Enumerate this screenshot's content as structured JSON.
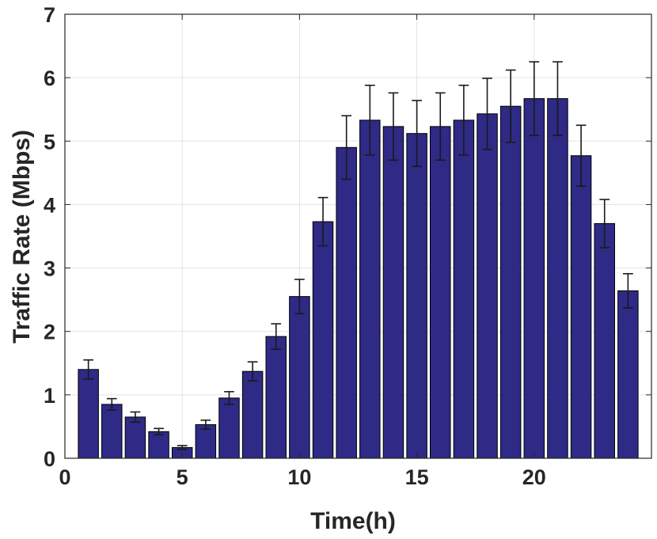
{
  "chart_data": {
    "type": "bar",
    "title": "",
    "xlabel": "Time(h)",
    "ylabel": "Traffic Rate (Mbps)",
    "xlim": [
      0,
      25
    ],
    "ylim": [
      0,
      7
    ],
    "xticks": [
      0,
      5,
      10,
      15,
      20
    ],
    "yticks": [
      0,
      1,
      2,
      3,
      4,
      5,
      6,
      7
    ],
    "grid": true,
    "bar_color": "#2e2a85",
    "error_bar_color": "#1a1a1a",
    "x": [
      1,
      2,
      3,
      4,
      5,
      6,
      7,
      8,
      9,
      10,
      11,
      12,
      13,
      14,
      15,
      16,
      17,
      18,
      19,
      20,
      21,
      22,
      23,
      24
    ],
    "values": [
      1.4,
      0.85,
      0.65,
      0.42,
      0.17,
      0.53,
      0.95,
      1.37,
      1.92,
      2.55,
      3.73,
      4.9,
      5.33,
      5.23,
      5.12,
      5.23,
      5.33,
      5.43,
      5.55,
      5.67,
      5.67,
      4.77,
      3.7,
      2.64
    ],
    "errors": [
      0.15,
      0.09,
      0.08,
      0.05,
      0.03,
      0.07,
      0.1,
      0.15,
      0.2,
      0.27,
      0.38,
      0.5,
      0.55,
      0.53,
      0.52,
      0.53,
      0.55,
      0.56,
      0.57,
      0.58,
      0.58,
      0.48,
      0.38,
      0.27
    ]
  }
}
